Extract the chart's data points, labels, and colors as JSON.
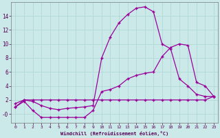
{
  "title": "",
  "xlabel": "Windchill (Refroidissement éolien,°C)",
  "ylabel": "",
  "bg_color": "#cce9e9",
  "line_color": "#990099",
  "grid_color": "#b0d8d8",
  "xlim_min": -0.5,
  "xlim_max": 23.5,
  "ylim_min": -1.3,
  "ylim_max": 16.0,
  "yticks": [
    0,
    2,
    4,
    6,
    8,
    10,
    12,
    14
  ],
  "ytick_labels": [
    "-0",
    "2",
    "4",
    "6",
    "8",
    "10",
    "12",
    "14"
  ],
  "xticks": [
    0,
    1,
    2,
    3,
    4,
    5,
    6,
    7,
    8,
    9,
    10,
    11,
    12,
    13,
    14,
    15,
    16,
    17,
    18,
    19,
    20,
    21,
    22,
    23
  ],
  "curve1_x": [
    0,
    1,
    2,
    3,
    4,
    5,
    6,
    7,
    8,
    9,
    10,
    11,
    12,
    13,
    14,
    15,
    16,
    17,
    18,
    19,
    20,
    21,
    22,
    23
  ],
  "curve1_y": [
    1.0,
    2.0,
    1.8,
    1.2,
    0.8,
    0.6,
    0.8,
    0.9,
    1.0,
    1.2,
    8.0,
    11.0,
    13.0,
    14.2,
    15.1,
    15.3,
    14.6,
    10.0,
    9.3,
    5.0,
    4.0,
    2.8,
    2.5,
    2.5
  ],
  "curve2_x": [
    0,
    1,
    2,
    3,
    4,
    5,
    6,
    7,
    8,
    9,
    10,
    11,
    12,
    13,
    14,
    15,
    16,
    17,
    18,
    19,
    20,
    21,
    22,
    23
  ],
  "curve2_y": [
    1.0,
    1.8,
    0.5,
    -0.5,
    -0.5,
    -0.5,
    -0.5,
    -0.5,
    -0.5,
    0.5,
    3.2,
    3.5,
    4.0,
    5.0,
    5.5,
    5.8,
    6.0,
    8.2,
    9.5,
    10.0,
    9.8,
    4.5,
    4.0,
    2.5
  ],
  "curve3_x": [
    0,
    1,
    2,
    3,
    4,
    5,
    6,
    7,
    8,
    9,
    10,
    11,
    12,
    13,
    14,
    15,
    16,
    17,
    18,
    19,
    20,
    21,
    22,
    23
  ],
  "curve3_y": [
    1.5,
    2.0,
    2.0,
    2.0,
    2.0,
    2.0,
    2.0,
    2.0,
    2.0,
    2.0,
    2.0,
    2.0,
    2.0,
    2.0,
    2.0,
    2.0,
    2.0,
    2.0,
    2.0,
    2.0,
    2.0,
    2.0,
    2.0,
    2.5
  ],
  "figsize": [
    3.2,
    2.0
  ],
  "dpi": 100
}
